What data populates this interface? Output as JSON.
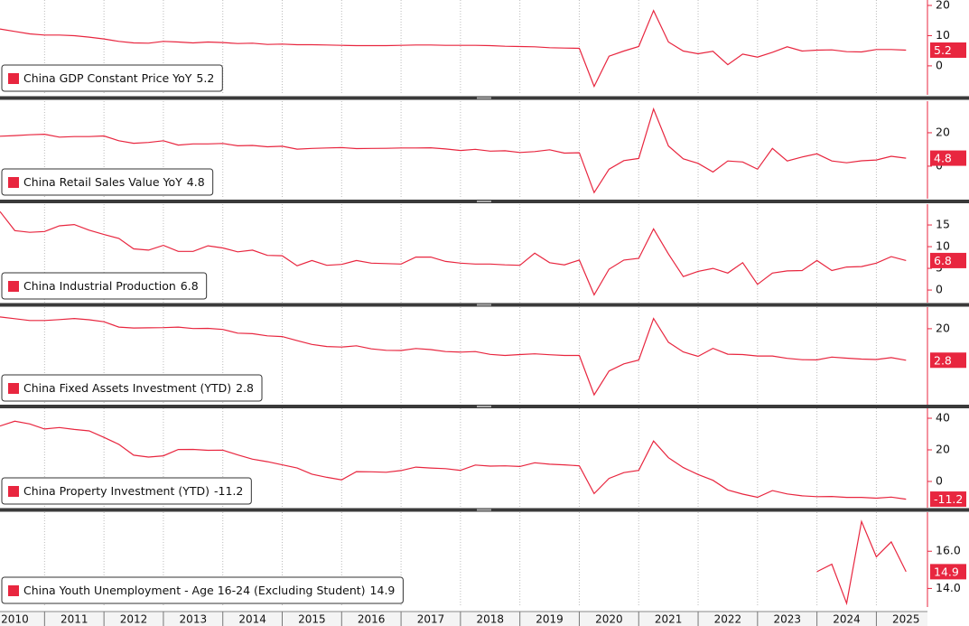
{
  "chart_data": [
    {
      "type": "line",
      "x": [
        2010.25,
        2010.5,
        2010.75,
        2011,
        2011.25,
        2011.5,
        2011.75,
        2012,
        2012.25,
        2012.5,
        2012.75,
        2013,
        2013.25,
        2013.5,
        2013.75,
        2014,
        2014.25,
        2014.5,
        2014.75,
        2015,
        2015.25,
        2015.5,
        2015.75,
        2016,
        2016.25,
        2016.5,
        2016.75,
        2017,
        2017.25,
        2017.5,
        2017.75,
        2018,
        2018.25,
        2018.5,
        2018.75,
        2019,
        2019.25,
        2019.5,
        2019.75,
        2020,
        2020.25,
        2020.5,
        2020.75,
        2021,
        2021.25,
        2021.5,
        2021.75,
        2022,
        2022.25,
        2022.5,
        2022.75,
        2023,
        2023.25,
        2023.5,
        2023.75,
        2024,
        2024.25,
        2024.5,
        2024.75,
        2025,
        2025.25,
        2025.5
      ],
      "series": [
        {
          "name": "China GDP Constant Price YoY",
          "color": "#e8263f",
          "values": [
            12.2,
            11.4,
            10.6,
            10.2,
            10.2,
            10.0,
            9.5,
            8.9,
            8.1,
            7.6,
            7.5,
            8.1,
            7.9,
            7.6,
            7.9,
            7.7,
            7.4,
            7.5,
            7.1,
            7.2,
            7.0,
            7.0,
            6.9,
            6.8,
            6.7,
            6.7,
            6.7,
            6.8,
            6.9,
            6.9,
            6.8,
            6.8,
            6.8,
            6.7,
            6.5,
            6.4,
            6.3,
            6.0,
            5.9,
            5.8,
            -6.8,
            3.2,
            4.9,
            6.4,
            18.3,
            7.9,
            4.9,
            4.0,
            4.8,
            0.4,
            3.9,
            2.9,
            4.5,
            6.3,
            4.9,
            5.2,
            5.3,
            4.7,
            4.6,
            5.4,
            5.4,
            5.2
          ]
        }
      ],
      "xlim": [
        2010.25,
        2025.86
      ],
      "ylim": [
        -9.6,
        21.8
      ],
      "yticks": [
        0,
        10,
        20
      ]
    },
    {
      "type": "line",
      "x": [
        2010.25,
        2010.5,
        2010.75,
        2011,
        2011.25,
        2011.5,
        2011.75,
        2012,
        2012.25,
        2012.5,
        2012.75,
        2013,
        2013.25,
        2013.5,
        2013.75,
        2014,
        2014.25,
        2014.5,
        2014.75,
        2015,
        2015.25,
        2015.5,
        2015.75,
        2016,
        2016.25,
        2016.5,
        2016.75,
        2017,
        2017.25,
        2017.5,
        2017.75,
        2018,
        2018.25,
        2018.5,
        2018.75,
        2019,
        2019.25,
        2019.5,
        2019.75,
        2020,
        2020.25,
        2020.5,
        2020.75,
        2021,
        2021.25,
        2021.5,
        2021.75,
        2022,
        2022.25,
        2022.5,
        2022.75,
        2023,
        2023.25,
        2023.5,
        2023.75,
        2024,
        2024.25,
        2024.5,
        2024.75,
        2025,
        2025.25,
        2025.5
      ],
      "series": [
        {
          "name": "China Retail Sales Value YoY",
          "color": "#e8263f",
          "values": [
            17.9,
            18.3,
            18.8,
            19.1,
            17.4,
            17.7,
            17.7,
            18.1,
            15.2,
            13.7,
            14.2,
            15.2,
            12.6,
            13.3,
            13.3,
            13.6,
            12.2,
            12.4,
            11.6,
            11.9,
            10.2,
            10.6,
            10.9,
            11.1,
            10.5,
            10.6,
            10.7,
            10.9,
            10.9,
            11.0,
            10.3,
            9.4,
            10.1,
            9.0,
            9.2,
            8.2,
            8.7,
            9.8,
            7.8,
            8.0,
            -15.8,
            -1.8,
            3.3,
            4.6,
            34.2,
            12.1,
            4.4,
            1.7,
            -3.5,
            3.1,
            2.5,
            -1.8,
            10.6,
            3.1,
            5.5,
            7.4,
            3.1,
            2.0,
            3.2,
            3.7,
            5.9,
            4.8
          ]
        }
      ],
      "xlim": [
        2010.25,
        2025.86
      ],
      "ylim": [
        -19.5,
        38.9
      ],
      "yticks": [
        0,
        20
      ]
    },
    {
      "type": "line",
      "x": [
        2010.25,
        2010.5,
        2010.75,
        2011,
        2011.25,
        2011.5,
        2011.75,
        2012,
        2012.25,
        2012.5,
        2012.75,
        2013,
        2013.25,
        2013.5,
        2013.75,
        2014,
        2014.25,
        2014.5,
        2014.75,
        2015,
        2015.25,
        2015.5,
        2015.75,
        2016,
        2016.25,
        2016.5,
        2016.75,
        2017,
        2017.25,
        2017.5,
        2017.75,
        2018,
        2018.25,
        2018.5,
        2018.75,
        2019,
        2019.25,
        2019.5,
        2019.75,
        2020,
        2020.25,
        2020.5,
        2020.75,
        2021,
        2021.25,
        2021.5,
        2021.75,
        2022,
        2022.25,
        2022.5,
        2022.75,
        2023,
        2023.25,
        2023.5,
        2023.75,
        2024,
        2024.25,
        2024.5,
        2024.75,
        2025,
        2025.25,
        2025.5
      ],
      "series": [
        {
          "name": "China Industrial Production",
          "color": "#e8263f",
          "values": [
            18.1,
            13.7,
            13.3,
            13.5,
            14.8,
            15.1,
            13.8,
            12.8,
            11.9,
            9.5,
            9.2,
            10.3,
            8.9,
            8.9,
            10.2,
            9.7,
            8.8,
            9.2,
            8.0,
            7.9,
            5.6,
            6.8,
            5.7,
            5.9,
            6.8,
            6.2,
            6.1,
            6.0,
            7.6,
            7.6,
            6.6,
            6.2,
            6.0,
            6.0,
            5.8,
            5.7,
            8.5,
            6.3,
            5.8,
            6.9,
            -1.1,
            4.8,
            6.9,
            7.3,
            14.1,
            8.3,
            3.1,
            4.3,
            5.0,
            3.9,
            6.3,
            1.3,
            3.9,
            4.4,
            4.5,
            6.8,
            4.5,
            5.3,
            5.4,
            6.2,
            7.7,
            6.8
          ]
        }
      ],
      "xlim": [
        2010.25,
        2025.86
      ],
      "ylim": [
        -2.9,
        19.8
      ],
      "yticks": [
        0,
        5,
        10,
        15
      ]
    },
    {
      "type": "line",
      "x": [
        2010.25,
        2010.5,
        2010.75,
        2011,
        2011.25,
        2011.5,
        2011.75,
        2012,
        2012.25,
        2012.5,
        2012.75,
        2013,
        2013.25,
        2013.5,
        2013.75,
        2014,
        2014.25,
        2014.5,
        2014.75,
        2015,
        2015.25,
        2015.5,
        2015.75,
        2016,
        2016.25,
        2016.5,
        2016.75,
        2017,
        2017.25,
        2017.5,
        2017.75,
        2018,
        2018.25,
        2018.5,
        2018.75,
        2019,
        2019.25,
        2019.5,
        2019.75,
        2020,
        2020.25,
        2020.5,
        2020.75,
        2021,
        2021.25,
        2021.5,
        2021.75,
        2022,
        2022.25,
        2022.5,
        2022.75,
        2023,
        2023.25,
        2023.5,
        2023.75,
        2024,
        2024.25,
        2024.5,
        2024.75,
        2025,
        2025.25,
        2025.5
      ],
      "series": [
        {
          "name": "China Fixed Assets Investment (YTD)",
          "color": "#e8263f",
          "values": [
            26.4,
            25.5,
            24.5,
            24.5,
            25.0,
            25.6,
            24.9,
            23.8,
            20.9,
            20.4,
            20.5,
            20.6,
            20.9,
            20.1,
            20.2,
            19.6,
            17.6,
            17.3,
            16.1,
            15.7,
            13.5,
            11.4,
            10.3,
            10.0,
            10.7,
            9.0,
            8.2,
            8.1,
            9.2,
            8.6,
            7.5,
            7.2,
            7.5,
            6.0,
            5.4,
            5.9,
            6.3,
            5.8,
            5.4,
            5.4,
            -16.1,
            -3.1,
            0.8,
            2.9,
            25.6,
            12.6,
            7.3,
            4.9,
            9.3,
            6.1,
            5.9,
            5.1,
            5.1,
            3.8,
            3.1,
            3.0,
            4.5,
            3.9,
            3.4,
            3.2,
            4.2,
            2.8
          ]
        }
      ],
      "xlim": [
        2010.25,
        2025.86
      ],
      "ylim": [
        -21.5,
        31.8
      ],
      "yticks": [
        20
      ]
    },
    {
      "type": "line",
      "x": [
        2010.25,
        2010.5,
        2010.75,
        2011,
        2011.25,
        2011.5,
        2011.75,
        2012,
        2012.25,
        2012.5,
        2012.75,
        2013,
        2013.25,
        2013.5,
        2013.75,
        2014,
        2014.25,
        2014.5,
        2014.75,
        2015,
        2015.25,
        2015.5,
        2015.75,
        2016,
        2016.25,
        2016.5,
        2016.75,
        2017,
        2017.25,
        2017.5,
        2017.75,
        2018,
        2018.25,
        2018.5,
        2018.75,
        2019,
        2019.25,
        2019.5,
        2019.75,
        2020,
        2020.25,
        2020.5,
        2020.75,
        2021,
        2021.25,
        2021.5,
        2021.75,
        2022,
        2022.25,
        2022.5,
        2022.75,
        2023,
        2023.25,
        2023.5,
        2023.75,
        2024,
        2024.25,
        2024.5,
        2024.75,
        2025,
        2025.25,
        2025.5
      ],
      "series": [
        {
          "name": "China Property Investment (YTD)",
          "color": "#e8263f",
          "values": [
            35.1,
            38.1,
            36.4,
            33.2,
            34.1,
            32.9,
            32.0,
            27.9,
            23.5,
            16.6,
            15.4,
            16.2,
            20.2,
            20.3,
            19.7,
            19.8,
            16.8,
            14.1,
            12.5,
            10.5,
            8.5,
            4.6,
            2.6,
            1.0,
            6.2,
            6.1,
            5.8,
            6.9,
            9.1,
            8.5,
            8.1,
            7.0,
            10.4,
            9.7,
            9.9,
            9.5,
            11.8,
            10.9,
            10.5,
            9.9,
            -7.7,
            1.9,
            5.6,
            7.0,
            25.6,
            15.0,
            8.8,
            4.4,
            0.7,
            -5.4,
            -8.0,
            -10.0,
            -5.8,
            -7.9,
            -9.1,
            -9.6,
            -9.5,
            -10.1,
            -10.1,
            -10.6,
            -9.9,
            -11.2
          ]
        }
      ],
      "xlim": [
        2010.25,
        2025.86
      ],
      "ylim": [
        -16.6,
        46.3
      ],
      "yticks": [
        0,
        20,
        40
      ]
    },
    {
      "type": "line",
      "x": [
        2024.0,
        2024.25,
        2024.5,
        2024.75,
        2025.0,
        2025.25,
        2025.5
      ],
      "series": [
        {
          "name": "China Youth Unemployment - Age 16-24 (Excluding Student)",
          "color": "#e8263f",
          "values": [
            14.9,
            15.3,
            13.2,
            17.6,
            15.7,
            16.5,
            14.9
          ]
        }
      ],
      "xlim": [
        2010.25,
        2025.86
      ],
      "ylim": [
        13.0,
        18.1
      ],
      "yticks": [
        {
          "value": 14,
          "label": "14.0"
        },
        {
          "value": 16,
          "label": "16.0"
        }
      ],
      "xticks": [
        {
          "value": 2010.5,
          "label": "2010"
        },
        {
          "value": 2011.5,
          "label": "2011"
        },
        {
          "value": 2012.5,
          "label": "2012"
        },
        {
          "value": 2013.5,
          "label": "2013"
        },
        {
          "value": 2014.5,
          "label": "2014"
        },
        {
          "value": 2015.5,
          "label": "2015"
        },
        {
          "value": 2016.5,
          "label": "2016"
        },
        {
          "value": 2017.5,
          "label": "2017"
        },
        {
          "value": 2018.5,
          "label": "2018"
        },
        {
          "value": 2019.5,
          "label": "2019"
        },
        {
          "value": 2020.5,
          "label": "2020"
        },
        {
          "value": 2021.5,
          "label": "2021"
        },
        {
          "value": 2022.5,
          "label": "2022"
        },
        {
          "value": 2023.5,
          "label": "2023"
        },
        {
          "value": 2024.5,
          "label": "2024"
        },
        {
          "value": 2025.5,
          "label": "2025"
        }
      ]
    }
  ]
}
